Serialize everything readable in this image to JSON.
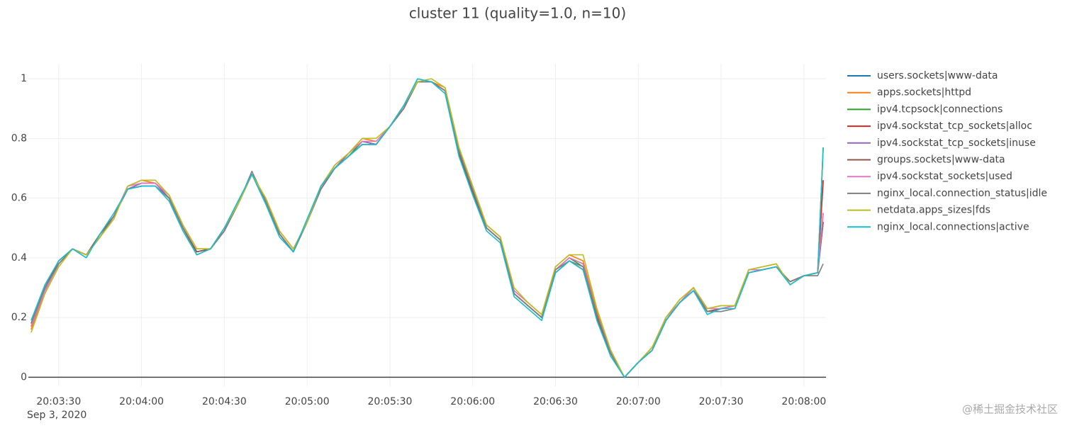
{
  "chart_data": {
    "type": "line",
    "title": "cluster 11 (quality=1.0, n=10)",
    "x": [
      "2020-09-03T20:03:20",
      "2020-09-03T20:03:25",
      "2020-09-03T20:03:30",
      "2020-09-03T20:03:35",
      "2020-09-03T20:03:40",
      "2020-09-03T20:03:45",
      "2020-09-03T20:03:50",
      "2020-09-03T20:03:55",
      "2020-09-03T20:04:00",
      "2020-09-03T20:04:05",
      "2020-09-03T20:04:10",
      "2020-09-03T20:04:15",
      "2020-09-03T20:04:20",
      "2020-09-03T20:04:25",
      "2020-09-03T20:04:30",
      "2020-09-03T20:04:35",
      "2020-09-03T20:04:40",
      "2020-09-03T20:04:45",
      "2020-09-03T20:04:50",
      "2020-09-03T20:04:55",
      "2020-09-03T20:05:00",
      "2020-09-03T20:05:05",
      "2020-09-03T20:05:10",
      "2020-09-03T20:05:15",
      "2020-09-03T20:05:20",
      "2020-09-03T20:05:25",
      "2020-09-03T20:05:30",
      "2020-09-03T20:05:35",
      "2020-09-03T20:05:40",
      "2020-09-03T20:05:45",
      "2020-09-03T20:05:50",
      "2020-09-03T20:05:55",
      "2020-09-03T20:06:00",
      "2020-09-03T20:06:05",
      "2020-09-03T20:06:10",
      "2020-09-03T20:06:15",
      "2020-09-03T20:06:20",
      "2020-09-03T20:06:25",
      "2020-09-03T20:06:30",
      "2020-09-03T20:06:35",
      "2020-09-03T20:06:40",
      "2020-09-03T20:06:45",
      "2020-09-03T20:06:50",
      "2020-09-03T20:06:55",
      "2020-09-03T20:07:00",
      "2020-09-03T20:07:05",
      "2020-09-03T20:07:10",
      "2020-09-03T20:07:15",
      "2020-09-03T20:07:20",
      "2020-09-03T20:07:25",
      "2020-09-03T20:07:30",
      "2020-09-03T20:07:35",
      "2020-09-03T20:07:40",
      "2020-09-03T20:07:45",
      "2020-09-03T20:07:50",
      "2020-09-03T20:07:55",
      "2020-09-03T20:08:00",
      "2020-09-03T20:08:05",
      "2020-09-03T20:08:07"
    ],
    "series": [
      {
        "name": "users.sockets|www-data",
        "color": "#1f77b4",
        "values": [
          0.18,
          0.3,
          0.39,
          0.43,
          0.41,
          0.48,
          0.54,
          0.63,
          0.64,
          0.64,
          0.6,
          0.5,
          0.42,
          0.43,
          0.49,
          0.58,
          0.68,
          0.59,
          0.48,
          0.42,
          0.52,
          0.63,
          0.7,
          0.74,
          0.78,
          0.78,
          0.84,
          0.9,
          0.99,
          0.99,
          0.96,
          0.75,
          0.62,
          0.5,
          0.46,
          0.28,
          0.24,
          0.2,
          0.35,
          0.39,
          0.36,
          0.2,
          0.08,
          0.0,
          0.05,
          0.09,
          0.19,
          0.25,
          0.29,
          0.22,
          0.23,
          0.24,
          0.35,
          0.36,
          0.37,
          0.32,
          0.34,
          0.35,
          0.52
        ]
      },
      {
        "name": "apps.sockets|httpd",
        "color": "#ff7f0e",
        "values": [
          0.16,
          0.29,
          0.38,
          0.43,
          0.41,
          0.47,
          0.54,
          0.64,
          0.66,
          0.65,
          0.61,
          0.51,
          0.43,
          0.43,
          0.5,
          0.58,
          0.68,
          0.6,
          0.49,
          0.43,
          0.52,
          0.64,
          0.71,
          0.75,
          0.8,
          0.79,
          0.84,
          0.91,
          0.99,
          0.99,
          0.97,
          0.77,
          0.64,
          0.51,
          0.47,
          0.29,
          0.25,
          0.21,
          0.37,
          0.41,
          0.39,
          0.22,
          0.09,
          0.0,
          0.05,
          0.1,
          0.2,
          0.26,
          0.3,
          0.23,
          0.24,
          0.24,
          0.36,
          0.37,
          0.38,
          0.31,
          0.34,
          0.35,
          0.66
        ]
      },
      {
        "name": "ipv4.tcpsock|connections",
        "color": "#2ca02c",
        "values": [
          0.17,
          0.29,
          0.38,
          0.43,
          0.41,
          0.47,
          0.54,
          0.63,
          0.64,
          0.64,
          0.6,
          0.5,
          0.42,
          0.43,
          0.49,
          0.58,
          0.68,
          0.59,
          0.48,
          0.42,
          0.52,
          0.63,
          0.7,
          0.74,
          0.79,
          0.78,
          0.84,
          0.9,
          0.99,
          0.99,
          0.96,
          0.76,
          0.63,
          0.5,
          0.46,
          0.28,
          0.24,
          0.2,
          0.36,
          0.4,
          0.37,
          0.21,
          0.08,
          0.0,
          0.05,
          0.09,
          0.19,
          0.25,
          0.29,
          0.22,
          0.23,
          0.24,
          0.35,
          0.36,
          0.37,
          0.32,
          0.34,
          0.35,
          0.77
        ]
      },
      {
        "name": "ipv4.sockstat_tcp_sockets|alloc",
        "color": "#d62728",
        "values": [
          0.17,
          0.29,
          0.38,
          0.43,
          0.41,
          0.47,
          0.54,
          0.63,
          0.65,
          0.65,
          0.6,
          0.5,
          0.42,
          0.43,
          0.49,
          0.58,
          0.68,
          0.59,
          0.48,
          0.42,
          0.52,
          0.63,
          0.7,
          0.75,
          0.79,
          0.78,
          0.84,
          0.9,
          0.99,
          0.99,
          0.96,
          0.76,
          0.63,
          0.5,
          0.46,
          0.28,
          0.24,
          0.2,
          0.36,
          0.4,
          0.38,
          0.21,
          0.08,
          0.0,
          0.05,
          0.09,
          0.19,
          0.25,
          0.3,
          0.22,
          0.23,
          0.24,
          0.35,
          0.36,
          0.37,
          0.32,
          0.34,
          0.35,
          0.66
        ]
      },
      {
        "name": "ipv4.sockstat_tcp_sockets|inuse",
        "color": "#9467bd",
        "values": [
          0.17,
          0.29,
          0.38,
          0.43,
          0.41,
          0.47,
          0.54,
          0.63,
          0.65,
          0.65,
          0.6,
          0.5,
          0.42,
          0.43,
          0.49,
          0.58,
          0.68,
          0.59,
          0.48,
          0.42,
          0.52,
          0.63,
          0.7,
          0.75,
          0.79,
          0.78,
          0.84,
          0.9,
          0.99,
          0.99,
          0.96,
          0.76,
          0.63,
          0.5,
          0.46,
          0.28,
          0.24,
          0.2,
          0.36,
          0.4,
          0.38,
          0.21,
          0.08,
          0.0,
          0.05,
          0.09,
          0.19,
          0.25,
          0.3,
          0.22,
          0.23,
          0.24,
          0.35,
          0.36,
          0.37,
          0.32,
          0.34,
          0.35,
          0.55
        ]
      },
      {
        "name": "groups.sockets|www-data",
        "color": "#8c564b",
        "values": [
          0.18,
          0.3,
          0.39,
          0.43,
          0.41,
          0.48,
          0.54,
          0.63,
          0.64,
          0.64,
          0.6,
          0.5,
          0.42,
          0.43,
          0.49,
          0.58,
          0.68,
          0.59,
          0.48,
          0.42,
          0.52,
          0.63,
          0.7,
          0.74,
          0.78,
          0.78,
          0.84,
          0.9,
          0.99,
          0.99,
          0.96,
          0.75,
          0.62,
          0.5,
          0.46,
          0.28,
          0.24,
          0.2,
          0.35,
          0.39,
          0.36,
          0.2,
          0.08,
          0.0,
          0.05,
          0.09,
          0.19,
          0.25,
          0.29,
          0.22,
          0.23,
          0.24,
          0.35,
          0.36,
          0.37,
          0.32,
          0.34,
          0.35,
          0.52
        ]
      },
      {
        "name": "ipv4.sockstat_sockets|used",
        "color": "#e377c2",
        "values": [
          0.17,
          0.29,
          0.38,
          0.43,
          0.41,
          0.47,
          0.54,
          0.64,
          0.65,
          0.65,
          0.61,
          0.51,
          0.43,
          0.43,
          0.49,
          0.58,
          0.68,
          0.59,
          0.49,
          0.43,
          0.52,
          0.63,
          0.71,
          0.75,
          0.79,
          0.79,
          0.84,
          0.9,
          0.99,
          0.99,
          0.96,
          0.76,
          0.63,
          0.51,
          0.47,
          0.29,
          0.25,
          0.21,
          0.36,
          0.4,
          0.38,
          0.21,
          0.09,
          0.0,
          0.05,
          0.09,
          0.2,
          0.25,
          0.3,
          0.23,
          0.23,
          0.24,
          0.36,
          0.36,
          0.37,
          0.32,
          0.34,
          0.35,
          0.55
        ]
      },
      {
        "name": "nginx_local.connection_status|idle",
        "color": "#7f7f7f",
        "values": [
          0.18,
          0.3,
          0.38,
          0.43,
          0.41,
          0.47,
          0.54,
          0.63,
          0.64,
          0.64,
          0.6,
          0.5,
          0.41,
          0.43,
          0.49,
          0.58,
          0.69,
          0.59,
          0.48,
          0.42,
          0.52,
          0.63,
          0.7,
          0.74,
          0.78,
          0.78,
          0.84,
          0.9,
          0.99,
          0.99,
          0.96,
          0.76,
          0.63,
          0.5,
          0.46,
          0.28,
          0.24,
          0.2,
          0.36,
          0.39,
          0.37,
          0.21,
          0.08,
          0.0,
          0.05,
          0.09,
          0.19,
          0.25,
          0.29,
          0.22,
          0.22,
          0.23,
          0.35,
          0.36,
          0.37,
          0.32,
          0.34,
          0.34,
          0.38
        ]
      },
      {
        "name": "netdata.apps_sizes|fds",
        "color": "#bcbd22",
        "values": [
          0.15,
          0.28,
          0.37,
          0.43,
          0.41,
          0.47,
          0.53,
          0.64,
          0.66,
          0.66,
          0.61,
          0.51,
          0.43,
          0.43,
          0.5,
          0.58,
          0.68,
          0.6,
          0.49,
          0.43,
          0.52,
          0.64,
          0.71,
          0.75,
          0.8,
          0.8,
          0.84,
          0.91,
          0.99,
          1.0,
          0.97,
          0.77,
          0.64,
          0.51,
          0.47,
          0.3,
          0.25,
          0.21,
          0.37,
          0.41,
          0.41,
          0.23,
          0.09,
          0.0,
          0.05,
          0.1,
          0.2,
          0.26,
          0.3,
          0.23,
          0.24,
          0.24,
          0.36,
          0.37,
          0.38,
          0.31,
          0.34,
          0.35,
          0.77
        ]
      },
      {
        "name": "nginx_local.connections|active",
        "color": "#17becf",
        "values": [
          0.19,
          0.31,
          0.39,
          0.43,
          0.4,
          0.48,
          0.55,
          0.63,
          0.64,
          0.64,
          0.59,
          0.49,
          0.41,
          0.43,
          0.5,
          0.59,
          0.68,
          0.58,
          0.47,
          0.42,
          0.53,
          0.64,
          0.7,
          0.74,
          0.78,
          0.78,
          0.84,
          0.91,
          1.0,
          0.99,
          0.95,
          0.74,
          0.61,
          0.49,
          0.45,
          0.27,
          0.23,
          0.19,
          0.35,
          0.39,
          0.36,
          0.19,
          0.07,
          0.0,
          0.05,
          0.09,
          0.19,
          0.25,
          0.29,
          0.21,
          0.23,
          0.23,
          0.35,
          0.36,
          0.37,
          0.31,
          0.34,
          0.35,
          0.77
        ]
      }
    ],
    "xlim": [
      "2020-09-03T20:03:19",
      "2020-09-03T20:08:08"
    ],
    "xticks": [
      {
        "value": "2020-09-03T20:03:30",
        "label": "20:03:30"
      },
      {
        "value": "2020-09-03T20:04:00",
        "label": "20:04:00"
      },
      {
        "value": "2020-09-03T20:04:30",
        "label": "20:04:30"
      },
      {
        "value": "2020-09-03T20:05:00",
        "label": "20:05:00"
      },
      {
        "value": "2020-09-03T20:05:30",
        "label": "20:05:30"
      },
      {
        "value": "2020-09-03T20:06:00",
        "label": "20:06:00"
      },
      {
        "value": "2020-09-03T20:06:30",
        "label": "20:06:30"
      },
      {
        "value": "2020-09-03T20:07:00",
        "label": "20:07:00"
      },
      {
        "value": "2020-09-03T20:07:30",
        "label": "20:07:30"
      },
      {
        "value": "2020-09-03T20:08:00",
        "label": "20:08:00"
      }
    ],
    "x_date_label": "Sep 3, 2020",
    "ylim": [
      -0.03,
      1.05
    ],
    "yticks": [
      0,
      0.2,
      0.4,
      0.6,
      0.8,
      1
    ],
    "grid": true
  },
  "watermark": "@稀土掘金技术社区"
}
